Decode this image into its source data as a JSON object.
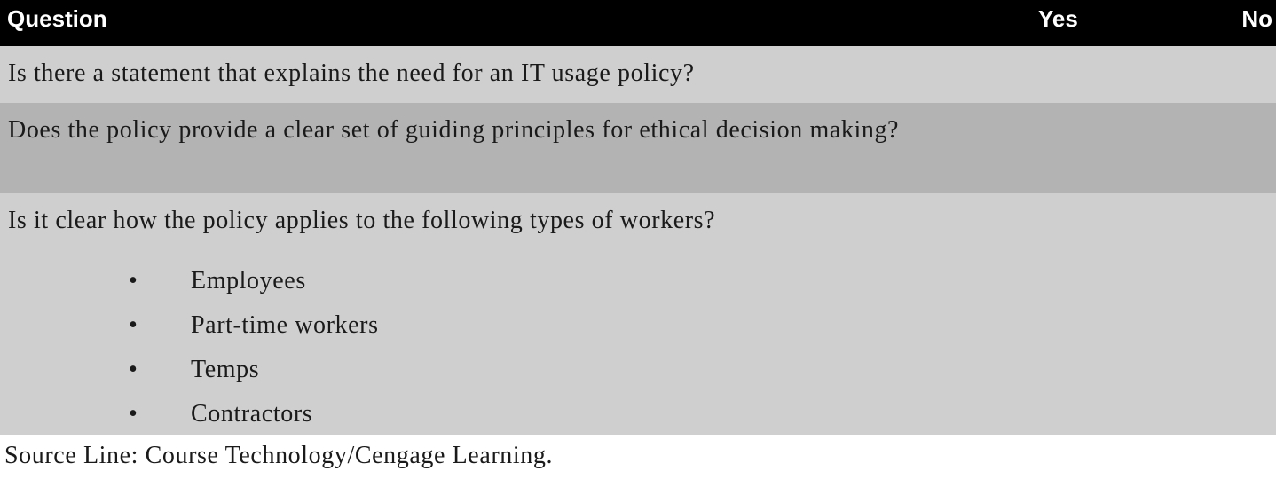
{
  "table": {
    "headers": {
      "question": "Question",
      "yes": "Yes",
      "no": "No"
    },
    "rows": [
      {
        "question": "Is there a statement that explains the need for an IT usage policy?"
      },
      {
        "question": "Does the policy provide a clear set of guiding principles for ethical decision making?"
      },
      {
        "question": "Is it clear how the policy applies to the following types of workers?",
        "bullets": [
          "Employees",
          "Part-time workers",
          "Temps",
          "Contractors"
        ]
      }
    ]
  },
  "source_line": "Source Line: Course Technology/Cengage Learning.",
  "colors": {
    "header_bg": "#000000",
    "header_text": "#ffffff",
    "row_light": "#cfcfcf",
    "row_dark": "#b3b3b3"
  }
}
